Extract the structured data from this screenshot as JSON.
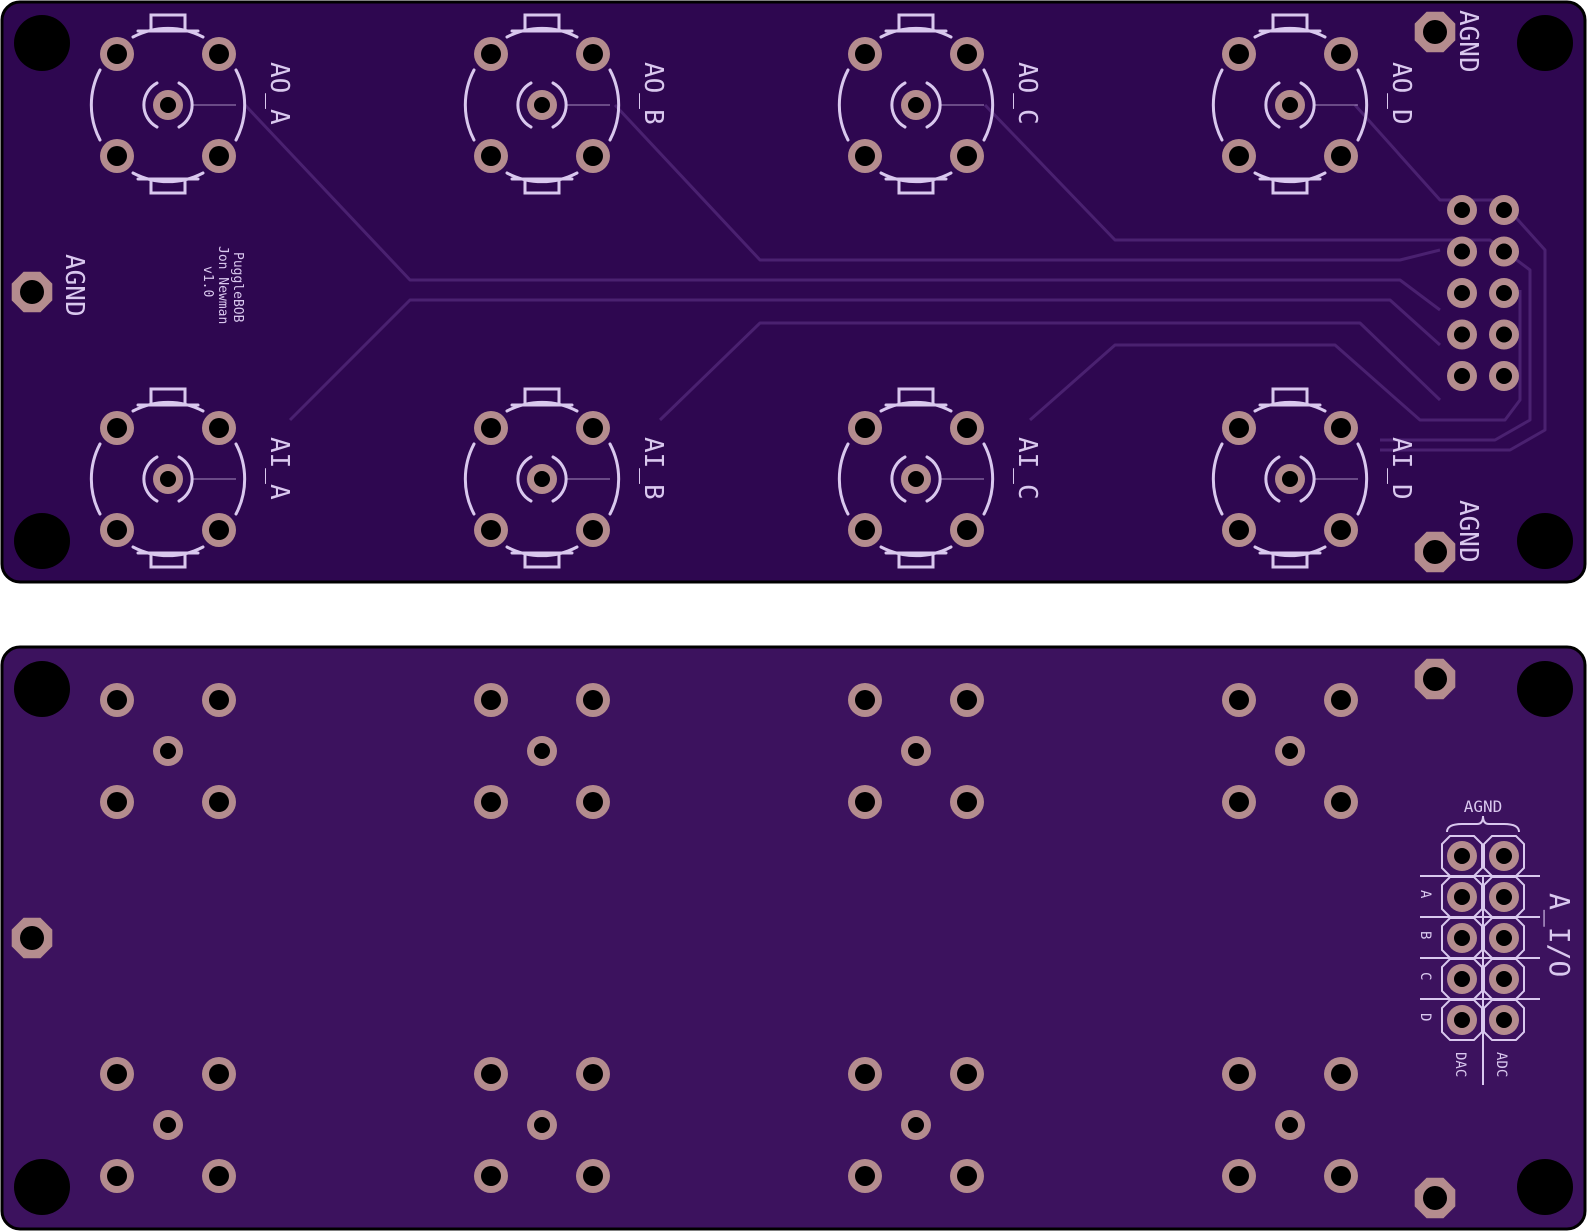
{
  "colors": {
    "board_top": "#2e0750",
    "board_bottom": "#3c125e",
    "board_edge": "#000000",
    "pad_copper": "#b48c8e",
    "drill": "#000000",
    "silkscreen": "#d9c8ee",
    "trace": "#4a2170"
  },
  "top_side": {
    "outputs": [
      "AO_A",
      "AO_B",
      "AO_C",
      "AO_D"
    ],
    "inputs": [
      "AI_A",
      "AI_B",
      "AI_C",
      "AI_D"
    ],
    "ground_labels": [
      "AGND",
      "AGND",
      "AGND"
    ],
    "credits": [
      "PuggleBOB",
      "Jon Newman",
      "v1.0"
    ]
  },
  "bottom_side": {
    "header_title": "A_I/O",
    "header_ground": "AGND",
    "channels": [
      "A",
      "B",
      "C",
      "D"
    ],
    "column_labels": [
      "DAC",
      "ADC"
    ]
  }
}
